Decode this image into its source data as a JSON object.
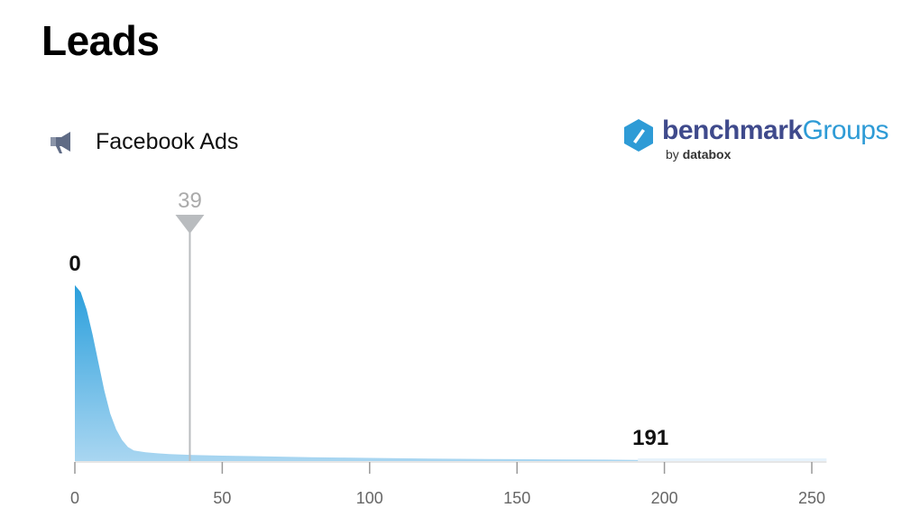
{
  "page": {
    "title": "Leads"
  },
  "source": {
    "label": "Facebook Ads",
    "icon": "megaphone-icon"
  },
  "logo": {
    "main": "benchmark",
    "groups": "Groups",
    "by": "by",
    "brand": "databox",
    "colors": {
      "dark": "#3f4a8c",
      "light": "#2e9bd6"
    }
  },
  "chart_data": {
    "type": "area",
    "xlim": [
      0,
      255
    ],
    "x_ticks": [
      0,
      50,
      100,
      150,
      200,
      250
    ],
    "x_tick_labels": [
      "0",
      "50",
      "100",
      "150",
      "200",
      "250"
    ],
    "x": [
      0,
      2,
      4,
      6,
      8,
      10,
      12,
      14,
      16,
      18,
      20,
      24,
      28,
      32,
      36,
      40,
      50,
      60,
      70,
      80,
      90,
      100,
      110,
      120,
      130,
      140,
      150,
      160,
      170,
      180,
      191
    ],
    "y": [
      100,
      96,
      86,
      72,
      56,
      40,
      27,
      18,
      12,
      8,
      6,
      5,
      4.4,
      4,
      3.7,
      3.5,
      3.1,
      2.8,
      2.5,
      2.2,
      2.0,
      1.8,
      1.6,
      1.4,
      1.3,
      1.2,
      1.1,
      1.0,
      0.9,
      0.8,
      0.6
    ],
    "ylim": [
      0,
      100
    ],
    "min_label": "0",
    "max_label": "191",
    "marker": {
      "value": 39,
      "label": "39"
    },
    "tail_end": 255,
    "colors": {
      "fill_top": "#2a9fdc",
      "fill_bottom": "#a9d6f1",
      "tail": "#e6f2fb",
      "marker": "#b9bcbf",
      "axis": "#cccccc"
    }
  }
}
